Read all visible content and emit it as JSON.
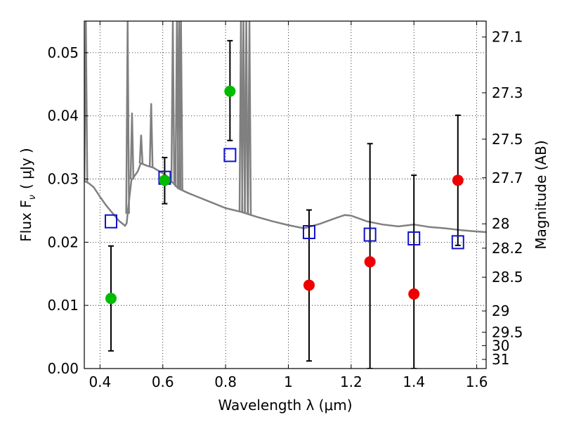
{
  "chart_data": {
    "type": "scatter",
    "xlabel": "Wavelength  λ (μm)",
    "ylabel": "Flux  F",
    "ylabel_sub": "ν",
    "ylabel_unit": "( μJy )",
    "ylabel_right": "Magnitude (AB)",
    "xlim": [
      0.35,
      1.63
    ],
    "ylim": [
      0.0,
      0.055
    ],
    "grid": true,
    "x_ticks": [
      0.4,
      0.6,
      0.8,
      1.0,
      1.2,
      1.4,
      1.6
    ],
    "x_tick_labels": [
      "0.4",
      "0.6",
      "0.8",
      "1",
      "1.2",
      "1.4",
      "1.6"
    ],
    "y_ticks": [
      0.0,
      0.01,
      0.02,
      0.03,
      0.04,
      0.05
    ],
    "y_tick_labels": [
      "0.00",
      "0.01",
      "0.02",
      "0.03",
      "0.04",
      "0.05"
    ],
    "mag_ticks": [
      27.1,
      27.3,
      27.5,
      27.7,
      28,
      28.2,
      28.5,
      29,
      29.5,
      30,
      31
    ],
    "mag_tick_labels": [
      "27.1",
      "27.3",
      "27.5",
      "27.7",
      "28",
      "28.2",
      "28.5",
      "29",
      "29.5",
      "30",
      "31"
    ],
    "colors": {
      "detection": "#00bb00",
      "nondetection": "#ee0000",
      "model": "#1010cc",
      "sed": "#808080",
      "errorbar": "#000000"
    },
    "observed": [
      {
        "x": 0.435,
        "y": 0.0111,
        "err_low": 0.0028,
        "err_high": 0.0194,
        "color": "detection"
      },
      {
        "x": 0.606,
        "y": 0.0298,
        "err_low": 0.0261,
        "err_high": 0.0334,
        "color": "detection"
      },
      {
        "x": 0.814,
        "y": 0.0439,
        "err_low": 0.0361,
        "err_high": 0.0519,
        "color": "detection"
      },
      {
        "x": 1.066,
        "y": 0.0132,
        "err_low": 0.0012,
        "err_high": 0.0251,
        "color": "nondetection"
      },
      {
        "x": 1.26,
        "y": 0.0169,
        "err_low": 0.0,
        "err_high": 0.0356,
        "color": "nondetection"
      },
      {
        "x": 1.4,
        "y": 0.0118,
        "err_low": 0.0,
        "err_high": 0.0306,
        "color": "nondetection"
      },
      {
        "x": 1.54,
        "y": 0.0298,
        "err_low": 0.0195,
        "err_high": 0.0401,
        "color": "nondetection"
      }
    ],
    "model_points": [
      {
        "x": 0.435,
        "y": 0.0233
      },
      {
        "x": 0.606,
        "y": 0.0302
      },
      {
        "x": 0.814,
        "y": 0.0338
      },
      {
        "x": 1.066,
        "y": 0.0216
      },
      {
        "x": 1.26,
        "y": 0.0212
      },
      {
        "x": 1.4,
        "y": 0.0206
      },
      {
        "x": 1.54,
        "y": 0.02
      }
    ],
    "sed_continuum": [
      [
        0.35,
        0.0297
      ],
      [
        0.365,
        0.0293
      ],
      [
        0.38,
        0.0287
      ],
      [
        0.4,
        0.0272
      ],
      [
        0.42,
        0.0258
      ],
      [
        0.44,
        0.0246
      ],
      [
        0.46,
        0.0234
      ],
      [
        0.47,
        0.023
      ],
      [
        0.48,
        0.0226
      ],
      [
        0.485,
        0.023
      ],
      [
        0.49,
        0.0255
      ],
      [
        0.5,
        0.0298
      ],
      [
        0.51,
        0.0305
      ],
      [
        0.52,
        0.0312
      ],
      [
        0.53,
        0.0325
      ],
      [
        0.55,
        0.0321
      ],
      [
        0.57,
        0.0318
      ],
      [
        0.59,
        0.0312
      ],
      [
        0.61,
        0.0306
      ],
      [
        0.63,
        0.0295
      ],
      [
        0.65,
        0.0285
      ],
      [
        0.68,
        0.0278
      ],
      [
        0.72,
        0.027
      ],
      [
        0.76,
        0.0262
      ],
      [
        0.8,
        0.0254
      ],
      [
        0.85,
        0.0248
      ],
      [
        0.9,
        0.024
      ],
      [
        0.95,
        0.0233
      ],
      [
        1.0,
        0.0227
      ],
      [
        1.05,
        0.0222
      ],
      [
        1.1,
        0.0229
      ],
      [
        1.15,
        0.0238
      ],
      [
        1.18,
        0.0243
      ],
      [
        1.2,
        0.0242
      ],
      [
        1.25,
        0.0233
      ],
      [
        1.3,
        0.0228
      ],
      [
        1.35,
        0.0225
      ],
      [
        1.4,
        0.0228
      ],
      [
        1.45,
        0.0224
      ],
      [
        1.5,
        0.0222
      ],
      [
        1.55,
        0.0219
      ],
      [
        1.6,
        0.0217
      ],
      [
        1.63,
        0.0216
      ]
    ],
    "sed_emission_lines": [
      [
        0.355,
        0.055
      ],
      [
        0.488,
        0.055
      ],
      [
        0.502,
        0.0405
      ],
      [
        0.531,
        0.037
      ],
      [
        0.563,
        0.042
      ],
      [
        0.632,
        0.055
      ],
      [
        0.645,
        0.055
      ],
      [
        0.652,
        0.055
      ],
      [
        0.658,
        0.055
      ],
      [
        0.849,
        0.055
      ],
      [
        0.857,
        0.055
      ],
      [
        0.866,
        0.055
      ],
      [
        0.876,
        0.055
      ]
    ]
  }
}
